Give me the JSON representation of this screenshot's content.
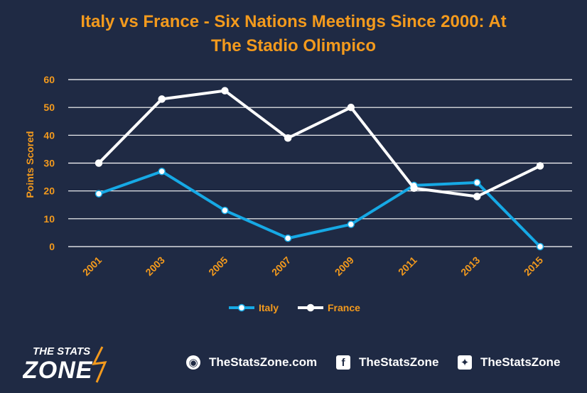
{
  "chart_data": {
    "type": "line",
    "title_lines": [
      "Italy vs France - Six Nations Meetings Since 2000: At",
      "The Stadio Olimpico"
    ],
    "xlabel": "",
    "ylabel": "Points Scored",
    "categories": [
      "2001",
      "2003",
      "2005",
      "2007",
      "2009",
      "2011",
      "2013",
      "2015"
    ],
    "ylim": [
      0,
      60
    ],
    "yticks": [
      0,
      10,
      20,
      30,
      40,
      50,
      60
    ],
    "grid": true,
    "legend_position": "bottom",
    "series": [
      {
        "name": "Italy",
        "color": "#16a9e5",
        "values": [
          19,
          27,
          13,
          3,
          8,
          22,
          23,
          0
        ]
      },
      {
        "name": "France",
        "color": "#ffffff",
        "values": [
          30,
          53,
          56,
          39,
          50,
          21,
          18,
          29
        ]
      }
    ],
    "colors": {
      "title": "#f39a1d",
      "tick_labels": "#f39a1d",
      "background": "#1f2a44",
      "grid": "#ffffff"
    }
  },
  "footer": {
    "brand_top": "THE STATS",
    "brand_bottom": "ZONE",
    "links": [
      {
        "icon": "globe-icon",
        "label": "TheStatsZone.com"
      },
      {
        "icon": "facebook-icon",
        "label": "TheStatsZone"
      },
      {
        "icon": "twitter-icon",
        "label": "TheStatsZone"
      }
    ]
  }
}
